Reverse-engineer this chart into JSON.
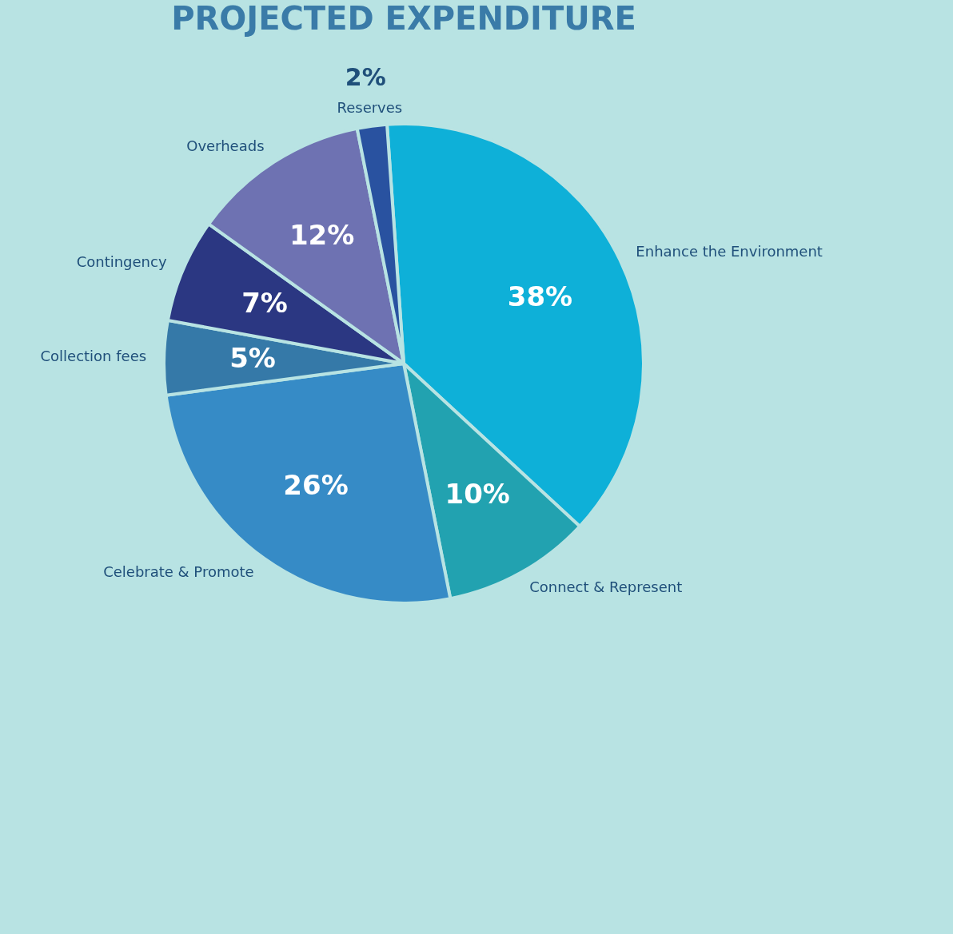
{
  "chart_data": {
    "type": "pie",
    "title": "PROJECTED EXPENDITURE",
    "categories": [
      "Enhance the Environment",
      "Connect & Represent",
      "Celebrate & Promote",
      "Collection fees",
      "Contingency",
      "Overheads",
      "Reserves"
    ],
    "values": [
      38,
      10,
      26,
      5,
      7,
      12,
      2
    ],
    "value_labels": [
      "38%",
      "10%",
      "26%",
      "5%",
      "7%",
      "12%",
      "2%"
    ],
    "colors": [
      "#0eb0d8",
      "#22a2b0",
      "#368bc6",
      "#3579a8",
      "#2b3782",
      "#6e72b2",
      "#2952a0"
    ],
    "legend": false
  }
}
